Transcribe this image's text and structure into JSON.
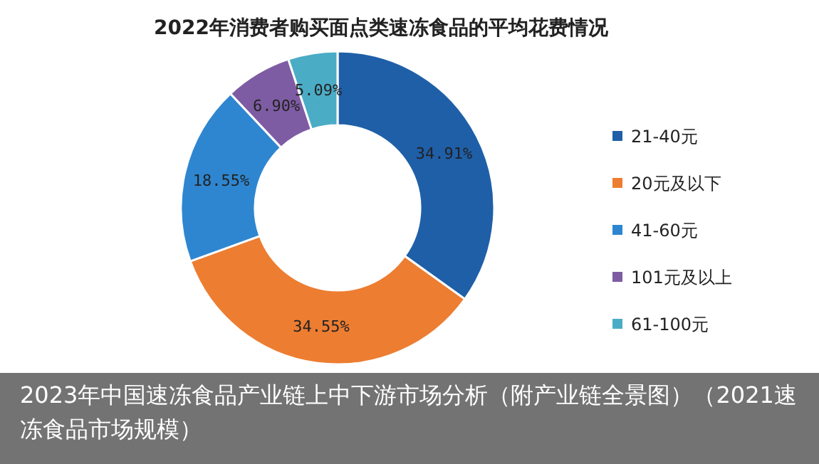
{
  "chart_data": {
    "type": "donut",
    "title": "2022年消费者购买面点类速冻食品的平均花费情况",
    "categories": [
      "21-40元",
      "20元及以下",
      "41-60元",
      "101元及以上",
      "61-100元"
    ],
    "values": [
      34.91,
      34.55,
      18.55,
      6.9,
      5.09
    ],
    "colors": [
      "#1f5fa8",
      "#ed7d31",
      "#2e86d0",
      "#7e5ca3",
      "#4bacc6"
    ],
    "value_labels": [
      "34.91%",
      "34.55%",
      "18.55%",
      "6.90%",
      "5.09%"
    ],
    "legend": "right",
    "annotations": [
      "2023年中国速冻食品产业链上中下游市场分析（附产业链全景图）（2021速冻食品市场规模）"
    ]
  }
}
